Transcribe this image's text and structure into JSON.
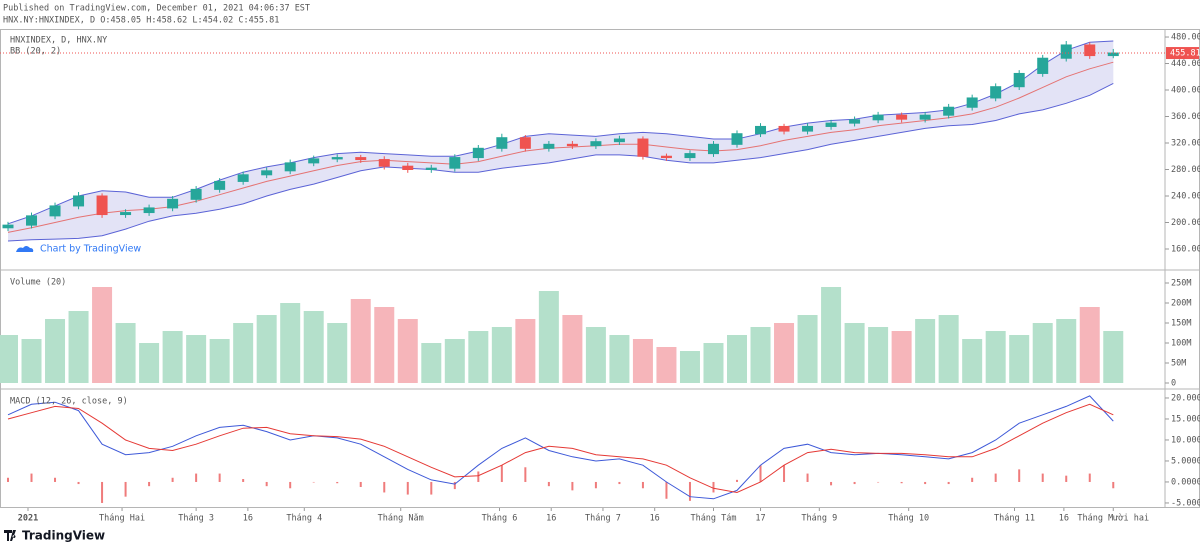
{
  "header": {
    "published": "Published on TradingView.com, December 01, 2021 04:06:37 EST",
    "symbol_line": "HNX.NY:HNXINDEX, D O:458.05 H:458.62 L:454.02 C:455.81"
  },
  "x_axis": {
    "xlim": [
      -0.34,
      49.2
    ],
    "ticks": [
      {
        "value": 0.85,
        "label": "2021"
      },
      {
        "value": 4.85,
        "label": "Tháng Hai"
      },
      {
        "value": 8.0,
        "label": "Tháng 3"
      },
      {
        "value": 10.2,
        "label": "16"
      },
      {
        "value": 12.6,
        "label": "Tháng 4"
      },
      {
        "value": 16.7,
        "label": "Tháng Năm"
      },
      {
        "value": 20.9,
        "label": "Tháng 6"
      },
      {
        "value": 23.1,
        "label": "16"
      },
      {
        "value": 25.3,
        "label": "Tháng 7"
      },
      {
        "value": 27.5,
        "label": "16"
      },
      {
        "value": 30.0,
        "label": "Tháng Tám"
      },
      {
        "value": 32.0,
        "label": "17"
      },
      {
        "value": 34.5,
        "label": "Tháng 9"
      },
      {
        "value": 38.3,
        "label": "Tháng 10"
      },
      {
        "value": 42.8,
        "label": "Tháng 11"
      },
      {
        "value": 44.9,
        "label": "16"
      },
      {
        "value": 47.0,
        "label": "Tháng Mười hai"
      }
    ]
  },
  "chart_data": [
    {
      "type": "candlestick",
      "title": "HNXINDEX, D, HNX.NY",
      "indicator": "BB (20, 2)",
      "watermark": "Chart by TradingView",
      "up_color": "#26a69a",
      "down_color": "#ef5350",
      "open": [
        192,
        196,
        210,
        225,
        240,
        212,
        215,
        222,
        235,
        250,
        262,
        272,
        278,
        290,
        296,
        298,
        295,
        285,
        280,
        282,
        298,
        312,
        328,
        312,
        318,
        316,
        322,
        326,
        300,
        298,
        304,
        318,
        334,
        345,
        338,
        345,
        350,
        355,
        362,
        356,
        362,
        374,
        388,
        405,
        425,
        448,
        468,
        452
      ],
      "high": [
        201,
        215,
        230,
        246,
        244,
        220,
        227,
        240,
        255,
        267,
        277,
        283,
        295,
        301,
        303,
        302,
        300,
        290,
        287,
        303,
        317,
        334,
        332,
        323,
        323,
        327,
        331,
        330,
        304,
        309,
        323,
        339,
        350,
        349,
        350,
        355,
        360,
        367,
        366,
        367,
        379,
        393,
        410,
        430,
        453,
        474,
        472,
        462
      ],
      "low": [
        187,
        191,
        205,
        220,
        207,
        207,
        210,
        217,
        230,
        245,
        257,
        267,
        273,
        285,
        291,
        290,
        280,
        275,
        275,
        277,
        293,
        307,
        307,
        307,
        311,
        311,
        317,
        295,
        293,
        293,
        299,
        313,
        329,
        333,
        333,
        340,
        345,
        350,
        351,
        351,
        357,
        369,
        383,
        400,
        420,
        443,
        447,
        448
      ],
      "close": [
        196,
        210,
        225,
        240,
        212,
        215,
        222,
        235,
        250,
        262,
        272,
        278,
        290,
        296,
        298,
        295,
        285,
        280,
        282,
        298,
        312,
        328,
        312,
        318,
        316,
        322,
        326,
        300,
        298,
        304,
        318,
        334,
        345,
        338,
        345,
        350,
        355,
        362,
        356,
        362,
        374,
        388,
        405,
        425,
        448,
        468,
        452,
        455.81
      ],
      "bands": {
        "fill": "#e3e3f6",
        "line_color": "#5b63d6",
        "mid_color": "#e57373",
        "upper": [
          198,
          210,
          225,
          240,
          248,
          246,
          238,
          238,
          250,
          264,
          276,
          284,
          290,
          298,
          304,
          306,
          304,
          302,
          300,
          300,
          308,
          318,
          330,
          334,
          332,
          330,
          334,
          336,
          334,
          330,
          326,
          326,
          334,
          344,
          350,
          354,
          356,
          362,
          364,
          366,
          370,
          380,
          394,
          412,
          438,
          460,
          472,
          474
        ],
        "middle": [
          185,
          192,
          200,
          208,
          214,
          218,
          220,
          224,
          232,
          242,
          252,
          262,
          270,
          278,
          286,
          292,
          294,
          292,
          290,
          288,
          292,
          300,
          308,
          312,
          314,
          316,
          318,
          318,
          314,
          310,
          308,
          310,
          316,
          324,
          330,
          336,
          340,
          346,
          350,
          354,
          358,
          364,
          374,
          388,
          404,
          420,
          432,
          442
        ],
        "lower": [
          172,
          174,
          175,
          176,
          180,
          190,
          202,
          210,
          214,
          220,
          228,
          240,
          250,
          258,
          268,
          278,
          284,
          282,
          280,
          276,
          276,
          282,
          286,
          290,
          296,
          302,
          302,
          300,
          294,
          290,
          290,
          294,
          298,
          304,
          310,
          318,
          324,
          330,
          336,
          342,
          346,
          348,
          354,
          364,
          370,
          380,
          392,
          410
        ]
      },
      "last_label": "455.81",
      "ylim": [
        131.3,
        490.6
      ],
      "yticks": [
        {
          "value": 160,
          "label": "160.00"
        },
        {
          "value": 200,
          "label": "200.00"
        },
        {
          "value": 240,
          "label": "240.00"
        },
        {
          "value": 280,
          "label": "280.00"
        },
        {
          "value": 320,
          "label": "320.00"
        },
        {
          "value": 360,
          "label": "360.00"
        },
        {
          "value": 400,
          "label": "400.00"
        },
        {
          "value": 440,
          "label": "440.00"
        },
        {
          "value": 480,
          "label": "480.00"
        }
      ]
    },
    {
      "type": "bar",
      "title": "Volume (20)",
      "up_color": "#b4e0cb",
      "down_color": "#f6b5ba",
      "values": [
        120000000,
        110000000,
        160000000,
        180000000,
        240000000,
        150000000,
        100000000,
        130000000,
        120000000,
        110000000,
        150000000,
        170000000,
        200000000,
        180000000,
        150000000,
        210000000,
        190000000,
        160000000,
        100000000,
        110000000,
        130000000,
        140000000,
        160000000,
        230000000,
        170000000,
        140000000,
        120000000,
        110000000,
        90000000,
        80000000,
        100000000,
        120000000,
        140000000,
        150000000,
        170000000,
        240000000,
        150000000,
        140000000,
        130000000,
        160000000,
        170000000,
        110000000,
        130000000,
        120000000,
        150000000,
        160000000,
        190000000,
        130000000
      ],
      "ylim": [
        -12500000,
        277500000
      ],
      "yticks": [
        0,
        {
          "value": 50000000,
          "label": "50M"
        },
        {
          "value": 100000000,
          "label": "100M"
        },
        {
          "value": 150000000,
          "label": "150M"
        },
        {
          "value": 200000000,
          "label": "200M"
        },
        {
          "value": 250000000,
          "label": "250M"
        }
      ]
    },
    {
      "type": "line",
      "title": "MACD (12, 26, close, 9)",
      "histogram_color": "#ef7b7b",
      "series": [
        {
          "color": "#3e59d8",
          "values": [
            16,
            18.5,
            19,
            17,
            9,
            6.5,
            7,
            8.5,
            11,
            13,
            13.5,
            12,
            10,
            11,
            10.5,
            9,
            6,
            3,
            0.5,
            -0.5,
            4,
            8,
            10.5,
            7.5,
            6,
            5,
            5.5,
            4,
            0,
            -3.5,
            -4,
            -2,
            4,
            8,
            9,
            7,
            6.5,
            6.8,
            6.5,
            6,
            5.5,
            7,
            10,
            14,
            16,
            18,
            20.5,
            14.5
          ]
        },
        {
          "color": "#e53935",
          "values": [
            15,
            16.5,
            18,
            17.5,
            14,
            10,
            8,
            7.5,
            9,
            11,
            12.8,
            13,
            11.5,
            11,
            10.8,
            10.2,
            8.5,
            6,
            3.5,
            1.2,
            1.5,
            4,
            7,
            8.5,
            8,
            6.5,
            6,
            5.5,
            4,
            1,
            -1.5,
            -2.5,
            0,
            4,
            7,
            7.8,
            7,
            6.8,
            6.8,
            6.5,
            6,
            6,
            8,
            11,
            14,
            16.5,
            18.5,
            16
          ]
        }
      ],
      "histogram": [
        1,
        2,
        1,
        -0.5,
        -5,
        -3.5,
        -1,
        1,
        2,
        2,
        0.7,
        -1,
        -1.5,
        0,
        -0.3,
        -1.2,
        -2.5,
        -3,
        -3,
        -1.7,
        2.5,
        4,
        3.5,
        -1,
        -2,
        -1.5,
        -0.5,
        -1.5,
        -4,
        -4.5,
        -2.5,
        0.5,
        4,
        4,
        2,
        -0.8,
        -0.5,
        0,
        -0.3,
        -0.5,
        -0.5,
        1,
        2,
        3,
        2,
        1.5,
        2,
        -1.5
      ],
      "ylim": [
        -6.2,
        21.9
      ],
      "yticks": [
        {
          "value": -5,
          "label": "-5.0000"
        },
        {
          "value": 0,
          "label": "0.0000"
        },
        {
          "value": 5,
          "label": "5.0000"
        },
        {
          "value": 10,
          "label": "10.0000"
        },
        {
          "value": 15,
          "label": "15.0000"
        },
        {
          "value": 20,
          "label": "20.0000"
        }
      ]
    }
  ],
  "footer": {
    "brand": "TradingView"
  }
}
